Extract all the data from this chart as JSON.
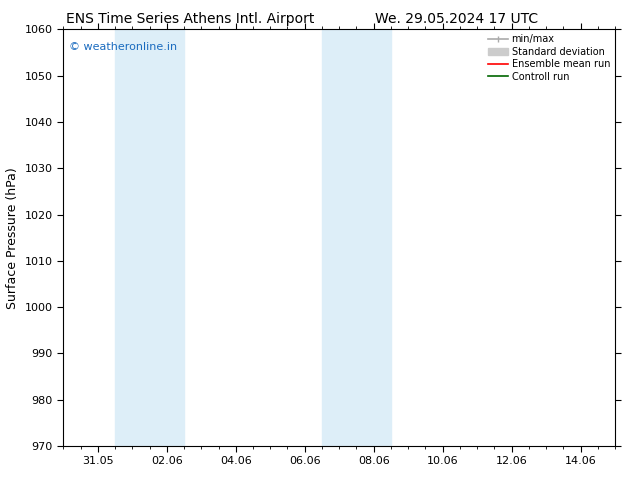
{
  "title_left": "ENS Time Series Athens Intl. Airport",
  "title_right": "We. 29.05.2024 17 UTC",
  "ylabel": "Surface Pressure (hPa)",
  "ylim": [
    970,
    1060
  ],
  "yticks": [
    970,
    980,
    990,
    1000,
    1010,
    1020,
    1030,
    1040,
    1050,
    1060
  ],
  "xtick_labels": [
    "31.05",
    "02.06",
    "04.06",
    "06.06",
    "08.06",
    "10.06",
    "12.06",
    "14.06"
  ],
  "xtick_positions": [
    1,
    3,
    5,
    7,
    9,
    11,
    13,
    15
  ],
  "xlim": [
    0,
    16
  ],
  "shaded_bands": [
    {
      "x_start": 1.5,
      "x_end": 3.5
    },
    {
      "x_start": 7.5,
      "x_end": 9.5
    }
  ],
  "shaded_color": "#ddeef8",
  "watermark_text": "© weatheronline.in",
  "watermark_color": "#1a6bbf",
  "background_color": "#ffffff",
  "plot_bg_color": "#ffffff",
  "legend_minmax_color": "#aaaaaa",
  "legend_std_color": "#cccccc",
  "legend_ensemble_color": "#ff0000",
  "legend_control_color": "#006600",
  "title_fontsize": 10,
  "ylabel_fontsize": 9,
  "tick_fontsize": 8,
  "watermark_fontsize": 8
}
